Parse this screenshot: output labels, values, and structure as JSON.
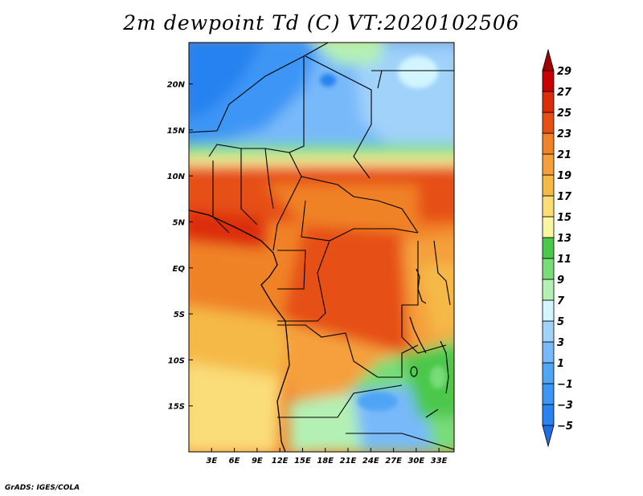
{
  "title": "2m dewpoint Td (C) VT:2020102506",
  "footer": "GrADS: IGES/COLA",
  "map": {
    "lon_range": [
      0,
      35
    ],
    "lat_range": [
      -20,
      24.5
    ],
    "lon_labels": [
      {
        "lon": 3,
        "label": "3E"
      },
      {
        "lon": 6,
        "label": "6E"
      },
      {
        "lon": 9,
        "label": "9E"
      },
      {
        "lon": 12,
        "label": "12E"
      },
      {
        "lon": 15,
        "label": "15E"
      },
      {
        "lon": 18,
        "label": "18E"
      },
      {
        "lon": 21,
        "label": "21E"
      },
      {
        "lon": 24,
        "label": "24E"
      },
      {
        "lon": 27,
        "label": "27E"
      },
      {
        "lon": 30,
        "label": "30E"
      },
      {
        "lon": 33,
        "label": "33E"
      }
    ],
    "lat_labels": [
      {
        "lat": 20,
        "label": "20N"
      },
      {
        "lat": 15,
        "label": "15N"
      },
      {
        "lat": 10,
        "label": "10N"
      },
      {
        "lat": 5,
        "label": "5N"
      },
      {
        "lat": 0,
        "label": "EQ"
      },
      {
        "lat": -5,
        "label": "5S"
      },
      {
        "lat": -10,
        "label": "10S"
      },
      {
        "lat": -15,
        "label": "15S"
      }
    ]
  },
  "colorbar": {
    "levels": [
      {
        "label": "−5"
      },
      {
        "label": "−3"
      },
      {
        "label": "−1"
      },
      {
        "label": "1"
      },
      {
        "label": "3"
      },
      {
        "label": "5"
      },
      {
        "label": "7"
      },
      {
        "label": "9"
      },
      {
        "label": "11"
      },
      {
        "label": "13"
      },
      {
        "label": "15"
      },
      {
        "label": "17"
      },
      {
        "label": "19"
      },
      {
        "label": "21"
      },
      {
        "label": "23"
      },
      {
        "label": "25"
      },
      {
        "label": "27"
      },
      {
        "label": "29"
      }
    ],
    "colors": [
      "#1e6ee6",
      "#2882f0",
      "#3c96f5",
      "#50a5f5",
      "#78b9fa",
      "#a0d2fa",
      "#d2f5ff",
      "#b4f0b4",
      "#78dc78",
      "#4bc84b",
      "#faf5a0",
      "#fadc78",
      "#f5b946",
      "#f5a03c",
      "#f08228",
      "#e65014",
      "#dc2d0a",
      "#c80000",
      "#a00000"
    ]
  }
}
